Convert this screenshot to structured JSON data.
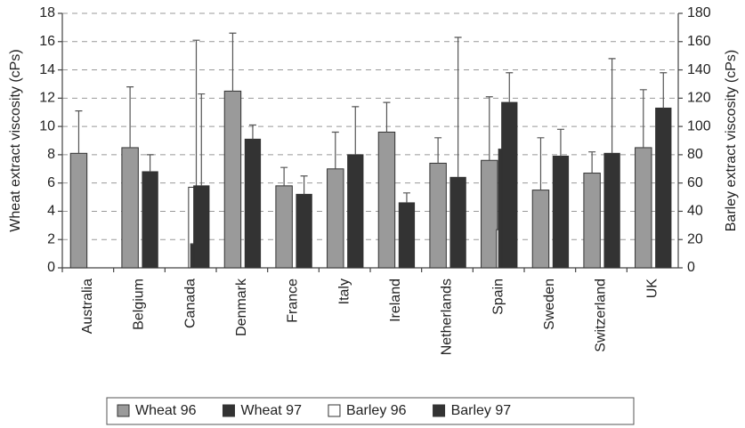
{
  "chart_data": {
    "type": "bar",
    "categories": [
      "Australia",
      "Belgium",
      "Canada",
      "Denmark",
      "France",
      "Italy",
      "Ireland",
      "Netherlands",
      "Spain",
      "Sweden",
      "Switzerland",
      "UK"
    ],
    "y_label": "Wheat extract viscosity (cPs)",
    "y2_label": "Barley extract viscosity (cPs)",
    "ylim": [
      0,
      18
    ],
    "yticks": [
      0,
      2,
      4,
      6,
      8,
      10,
      12,
      14,
      16,
      18
    ],
    "y2lim": [
      0,
      180
    ],
    "y2ticks": [
      0,
      20,
      40,
      60,
      80,
      100,
      120,
      140,
      160,
      180
    ],
    "grid": true,
    "legend": "bottom",
    "series": [
      {
        "name": "Wheat 96",
        "color": "#9a9a9a",
        "values": [
          8.1,
          8.5,
          null,
          12.5,
          5.8,
          7.0,
          9.6,
          7.4,
          7.6,
          5.5,
          6.7,
          8.5
        ],
        "errors": [
          3.0,
          4.3,
          null,
          4.1,
          1.3,
          2.6,
          2.1,
          1.8,
          4.5,
          3.7,
          1.5,
          4.1
        ]
      },
      {
        "name": "Wheat 97",
        "color": "#333333",
        "values": [
          null,
          null,
          1.7,
          null,
          null,
          null,
          null,
          null,
          8.4,
          null,
          null,
          null
        ],
        "errors": [
          null,
          null,
          0,
          null,
          null,
          null,
          null,
          null,
          0,
          null,
          null,
          null
        ]
      },
      {
        "name": "Barley 96",
        "color": "#ffffff",
        "axis": "y2",
        "values": [
          null,
          null,
          57,
          null,
          null,
          null,
          null,
          null,
          27,
          null,
          null,
          null
        ],
        "errors": [
          null,
          null,
          104,
          null,
          null,
          null,
          null,
          null,
          21,
          null,
          null,
          null
        ]
      },
      {
        "name": "Barley 97",
        "color": "#333333",
        "axis": "y2",
        "values": [
          null,
          68,
          58,
          91,
          52,
          80,
          46,
          64,
          117,
          79,
          81,
          113
        ],
        "errors": [
          null,
          12,
          65,
          10,
          13,
          34,
          7,
          99,
          21,
          19,
          67,
          25
        ]
      }
    ]
  }
}
